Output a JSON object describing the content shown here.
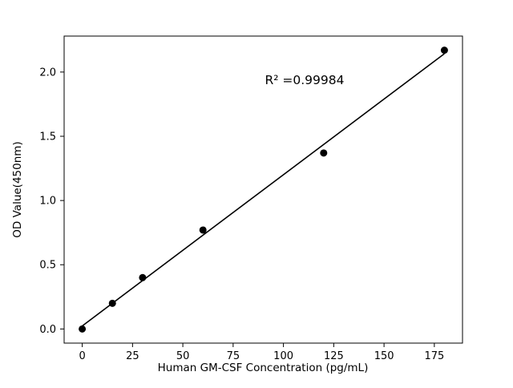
{
  "chart_data": {
    "type": "scatter",
    "title": "",
    "xlabel": "Human GM-CSF Concentration (pg/mL)",
    "ylabel": "OD Value(450nm)",
    "annotation": "R² =0.99984",
    "x": [
      0,
      15,
      30,
      60,
      120,
      180
    ],
    "y": [
      0.0,
      0.2,
      0.4,
      0.77,
      1.37,
      2.17
    ],
    "fit_line": {
      "slope": 0.011774,
      "intercept": 0.0236,
      "x_start": 0,
      "x_end": 180
    },
    "x_ticks": [
      0,
      25,
      50,
      75,
      100,
      125,
      150,
      175
    ],
    "y_ticks": [
      0.0,
      0.5,
      1.0,
      1.5,
      2.0
    ],
    "xlim": [
      -9,
      189
    ],
    "ylim": [
      -0.11,
      2.28
    ],
    "legend": null,
    "grid": false,
    "colors": {
      "marker": "#000000",
      "line": "#000000",
      "axis": "#000000",
      "background": "#ffffff"
    }
  }
}
